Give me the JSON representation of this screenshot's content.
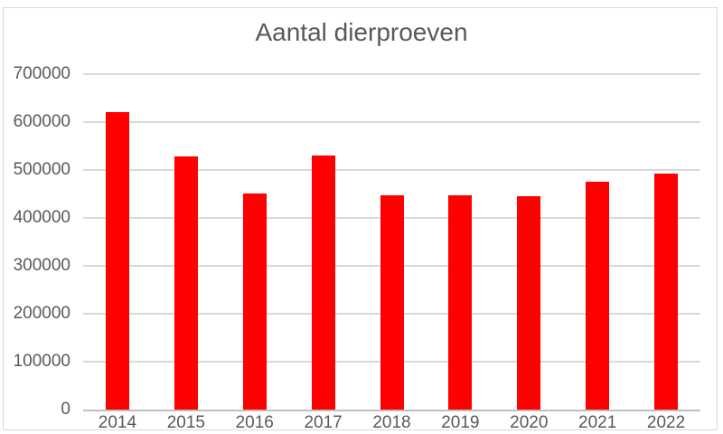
{
  "chart_data": {
    "type": "bar",
    "title": "Aantal dierproeven",
    "categories": [
      "2014",
      "2015",
      "2016",
      "2017",
      "2018",
      "2019",
      "2020",
      "2021",
      "2022"
    ],
    "values": [
      621000,
      528000,
      451000,
      530000,
      448000,
      448000,
      446000,
      476000,
      492000
    ],
    "xlabel": "",
    "ylabel": "",
    "ylim": [
      0,
      700000
    ],
    "ytick_step": 100000,
    "yticks": [
      "0",
      "100000",
      "200000",
      "300000",
      "400000",
      "500000",
      "600000",
      "700000"
    ],
    "grid": true,
    "legend": false
  },
  "colors": {
    "bar": "#ff0000",
    "text": "#595959",
    "gridline": "#d9d9d9",
    "axis_line": "#bfbfbf",
    "frame": "#d9d9d9",
    "background": "#ffffff"
  }
}
